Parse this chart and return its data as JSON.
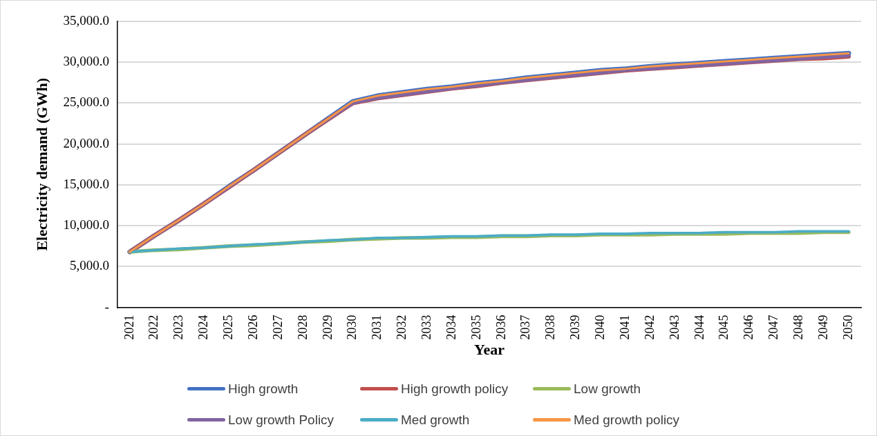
{
  "chart_data": {
    "type": "line",
    "xlabel": "Year",
    "ylabel": "Electricity demand (GWh)",
    "categories": [
      "2021",
      "2022",
      "2023",
      "2024",
      "2025",
      "2026",
      "2027",
      "2028",
      "2029",
      "2030",
      "2031",
      "2032",
      "2033",
      "2034",
      "2035",
      "2036",
      "2037",
      "2038",
      "2039",
      "2040",
      "2041",
      "2042",
      "2043",
      "2044",
      "2045",
      "2046",
      "2047",
      "2048",
      "2049",
      "2050"
    ],
    "series": [
      {
        "name": "High growth",
        "color": "#4472c4",
        "values": [
          6800,
          8800,
          10700,
          12700,
          14800,
          16800,
          18900,
          21000,
          23100,
          25200,
          25900,
          26300,
          26700,
          27000,
          27400,
          27700,
          28100,
          28400,
          28700,
          29000,
          29200,
          29500,
          29700,
          29900,
          30100,
          30300,
          30500,
          30700,
          30900,
          31100
        ]
      },
      {
        "name": "High growth policy",
        "color": "#c0504d",
        "values": [
          6800,
          8800,
          10700,
          12700,
          14700,
          16800,
          18900,
          21000,
          23000,
          25000,
          25600,
          26000,
          26400,
          26800,
          27100,
          27500,
          27800,
          28100,
          28400,
          28700,
          29000,
          29200,
          29400,
          29600,
          29800,
          30000,
          30200,
          30400,
          30500,
          30700
        ]
      },
      {
        "name": "Low growth",
        "color": "#9bbb59",
        "values": [
          6800,
          7000,
          7100,
          7300,
          7500,
          7600,
          7800,
          8000,
          8100,
          8300,
          8400,
          8500,
          8500,
          8600,
          8600,
          8700,
          8700,
          8800,
          8800,
          8900,
          8900,
          8900,
          9000,
          9000,
          9000,
          9100,
          9100,
          9100,
          9200,
          9200
        ]
      },
      {
        "name": "Low growth Policy",
        "color": "#8064a2",
        "values": [
          6800,
          8800,
          10700,
          12700,
          14700,
          16800,
          18900,
          21000,
          23000,
          25000,
          25600,
          26000,
          26400,
          26800,
          27100,
          27500,
          27800,
          28100,
          28400,
          28700,
          29000,
          29200,
          29400,
          29600,
          29800,
          30000,
          30200,
          30400,
          30600,
          30800
        ]
      },
      {
        "name": "Med growth",
        "color": "#4bacc6",
        "values": [
          6800,
          7000,
          7200,
          7300,
          7500,
          7700,
          7800,
          8000,
          8200,
          8300,
          8500,
          8500,
          8600,
          8700,
          8700,
          8800,
          8800,
          8900,
          8900,
          9000,
          9000,
          9100,
          9100,
          9100,
          9200,
          9200,
          9200,
          9300,
          9300,
          9300
        ]
      },
      {
        "name": "Med growth policy",
        "color": "#f79646",
        "values": [
          6800,
          8800,
          10700,
          12700,
          14800,
          16800,
          18900,
          21000,
          23100,
          25200,
          25900,
          26300,
          26700,
          27000,
          27400,
          27700,
          28100,
          28400,
          28700,
          29000,
          29200,
          29500,
          29700,
          29900,
          30100,
          30300,
          30500,
          30700,
          30900,
          31100
        ]
      }
    ],
    "ylim": [
      0,
      35000
    ],
    "yticks": [
      {
        "value": 0,
        "label": "-"
      },
      {
        "value": 5000,
        "label": "5,000.0"
      },
      {
        "value": 10000,
        "label": "10,000.0"
      },
      {
        "value": 15000,
        "label": "15,000.0"
      },
      {
        "value": 20000,
        "label": "20,000.0"
      },
      {
        "value": 25000,
        "label": "25,000.0"
      },
      {
        "value": 30000,
        "label": "30,000.0"
      },
      {
        "value": 35000,
        "label": "35,000.0"
      }
    ],
    "grid": "y",
    "legend": "bottom",
    "marker": "none",
    "line_style": "solid"
  }
}
